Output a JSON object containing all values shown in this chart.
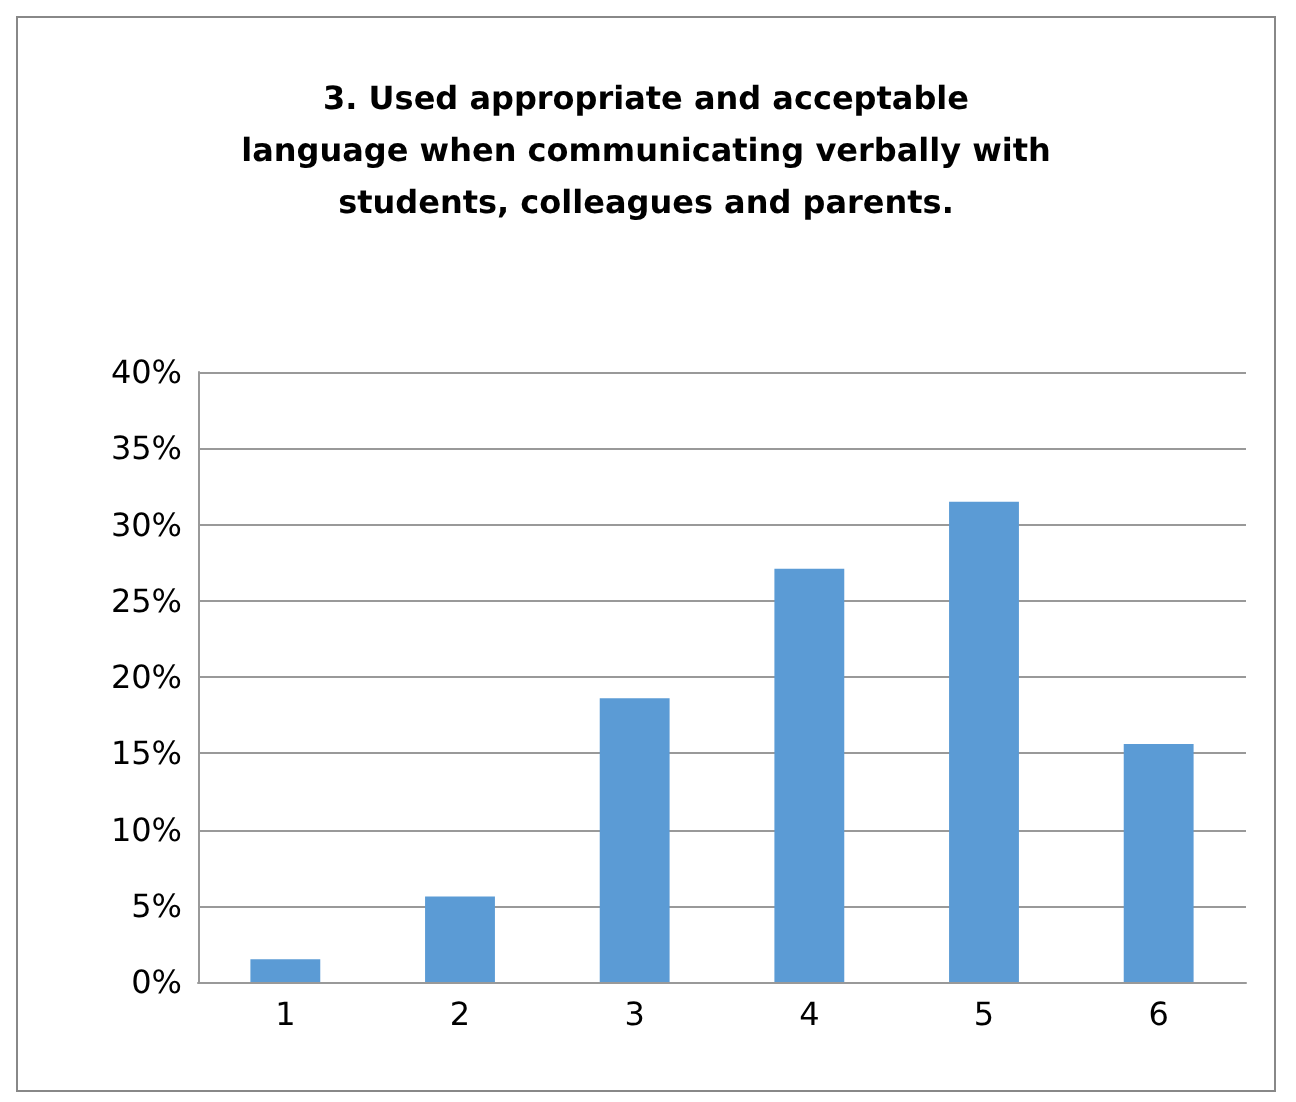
{
  "chart_data": {
    "type": "bar",
    "title": "3. Used appropriate and acceptable\nlanguage when communicating verbally with\nstudents, colleagues and parents.",
    "categories": [
      "1",
      "2",
      "3",
      "4",
      "5",
      "6"
    ],
    "values": [
      0.015,
      0.056,
      0.186,
      0.271,
      0.315,
      0.156
    ],
    "color": "#5b9bd5",
    "ylim": [
      0,
      0.4
    ],
    "yticks": [
      {
        "value": 0,
        "label": "0%"
      },
      {
        "value": 0.05,
        "label": "5%"
      },
      {
        "value": 0.1,
        "label": "10%"
      },
      {
        "value": 0.15,
        "label": "15%"
      },
      {
        "value": 0.2,
        "label": "20%"
      },
      {
        "value": 0.25,
        "label": "25%"
      },
      {
        "value": 0.3,
        "label": "30%"
      },
      {
        "value": 0.35,
        "label": "35%"
      },
      {
        "value": 0.4,
        "label": "40%"
      }
    ],
    "grid": "y"
  }
}
